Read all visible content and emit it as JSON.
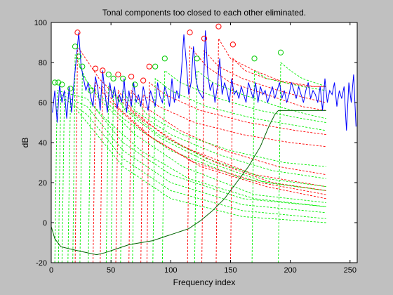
{
  "chart_data": {
    "type": "line",
    "title": "Tonal components too closed to each other eliminated.",
    "xlabel": "Frequency index",
    "ylabel": "dB",
    "xlim": [
      0,
      256
    ],
    "ylim": [
      -20,
      100
    ],
    "xticks": [
      0,
      50,
      100,
      150,
      200,
      250
    ],
    "yticks": [
      -20,
      0,
      20,
      40,
      60,
      80,
      100
    ],
    "grid": false,
    "colors": {
      "spectrum": "#0000ff",
      "threshold": "#006400",
      "tonal_masking": "#ff0000",
      "nontonal_masking": "#00ee00",
      "tonal_marker": "#ff0000",
      "nontonal_marker": "#00cc00"
    },
    "series": [
      {
        "key": "spectrum",
        "x": [
          1,
          3,
          5,
          7,
          9,
          11,
          13,
          15,
          17,
          19,
          21,
          23,
          25,
          27,
          29,
          31,
          33,
          35,
          37,
          39,
          41,
          43,
          45,
          47,
          49,
          51,
          53,
          55,
          57,
          59,
          61,
          63,
          65,
          67,
          69,
          71,
          73,
          75,
          77,
          79,
          81,
          83,
          85,
          87,
          89,
          91,
          93,
          95,
          97,
          99,
          101,
          103,
          105,
          107,
          109,
          111,
          113,
          115,
          117,
          119,
          121,
          123,
          125,
          127,
          129,
          131,
          133,
          135,
          137,
          139,
          141,
          143,
          145,
          147,
          149,
          151,
          153,
          155,
          157,
          159,
          161,
          163,
          165,
          167,
          169,
          171,
          173,
          175,
          177,
          179,
          181,
          183,
          185,
          187,
          189,
          191,
          193,
          195,
          197,
          199,
          201,
          203,
          205,
          207,
          209,
          211,
          213,
          215,
          217,
          219,
          221,
          223,
          225,
          227,
          229,
          231,
          233,
          235,
          237,
          239,
          241,
          243,
          245,
          247,
          249,
          251,
          253,
          255
        ],
        "y": [
          55,
          66,
          50,
          69,
          60,
          66,
          52,
          68,
          55,
          70,
          82,
          95,
          78,
          72,
          66,
          70,
          63,
          58,
          73,
          67,
          56,
          76,
          65,
          55,
          70,
          62,
          68,
          57,
          64,
          60,
          72,
          55,
          66,
          58,
          70,
          60,
          64,
          58,
          68,
          62,
          56,
          66,
          62,
          58,
          70,
          63,
          60,
          68,
          64,
          58,
          72,
          60,
          66,
          62,
          76,
          94,
          80,
          64,
          70,
          88,
          72,
          66,
          64,
          62,
          96,
          74,
          66,
          70,
          60,
          68,
          82,
          64,
          70,
          66,
          60,
          72,
          64,
          66,
          62,
          68,
          64,
          60,
          70,
          66,
          62,
          70,
          60,
          68,
          64,
          66,
          60,
          64,
          68,
          62,
          66,
          70,
          62,
          66,
          60,
          64,
          70,
          66,
          62,
          68,
          64,
          60,
          66,
          70,
          62,
          66,
          64,
          60,
          68,
          56,
          72,
          60,
          66,
          64,
          70,
          58,
          66,
          62,
          68,
          46,
          70,
          60,
          74,
          48
        ]
      },
      {
        "key": "threshold",
        "x": [
          0,
          3,
          8,
          15,
          22,
          30,
          38,
          45,
          55,
          65,
          75,
          85,
          95,
          105,
          115,
          125,
          135,
          145,
          155,
          165,
          175,
          182,
          187,
          190,
          200,
          210,
          220,
          230
        ],
        "y": [
          -2,
          -8,
          -12,
          -13,
          -14,
          -15,
          -16,
          -15,
          -13,
          -11,
          -10,
          -9,
          -7,
          -5,
          -3,
          1,
          6,
          12,
          20,
          28,
          38,
          48,
          54,
          56,
          56,
          56,
          56,
          56
        ]
      }
    ],
    "tonal_maskers": {
      "x": [
        22,
        37,
        43,
        56,
        67,
        77,
        82,
        116,
        128,
        140,
        152
      ],
      "y": [
        95,
        77,
        76,
        74,
        73,
        71,
        78,
        95,
        92,
        98,
        89
      ]
    },
    "nontonal_maskers": {
      "x": [
        3,
        6,
        9,
        16,
        20,
        23,
        26,
        33,
        48,
        52,
        60,
        70,
        87,
        95,
        122,
        170,
        192
      ],
      "y": [
        70,
        70,
        69,
        67,
        88,
        83,
        78,
        66,
        74,
        72,
        72,
        69,
        78,
        82,
        82,
        82,
        85
      ]
    },
    "masking_curves": [
      {
        "kind": "nontonal",
        "foot": [
          3,
          -20
        ],
        "peak": [
          5,
          66
        ],
        "tail": [
          [
            30,
            62
          ],
          [
            60,
            40
          ],
          [
            100,
            24
          ],
          [
            160,
            12
          ],
          [
            230,
            8
          ]
        ]
      },
      {
        "kind": "nontonal",
        "foot": [
          6,
          -20
        ],
        "peak": [
          8,
          64
        ],
        "tail": [
          [
            30,
            58
          ],
          [
            60,
            36
          ],
          [
            100,
            20
          ],
          [
            160,
            9
          ],
          [
            230,
            5
          ]
        ]
      },
      {
        "kind": "nontonal",
        "foot": [
          9,
          -20
        ],
        "peak": [
          11,
          62
        ],
        "tail": [
          [
            30,
            54
          ],
          [
            60,
            32
          ],
          [
            100,
            16
          ],
          [
            160,
            6
          ],
          [
            230,
            2
          ]
        ]
      },
      {
        "kind": "nontonal",
        "foot": [
          14,
          -20
        ],
        "peak": [
          16,
          60
        ],
        "tail": [
          [
            30,
            50
          ],
          [
            60,
            28
          ],
          [
            100,
            12
          ],
          [
            160,
            3
          ],
          [
            230,
            0
          ]
        ]
      },
      {
        "kind": "nontonal",
        "foot": [
          18,
          -20
        ],
        "peak": [
          20,
          84
        ],
        "tail": [
          [
            30,
            70
          ],
          [
            60,
            52
          ],
          [
            100,
            36
          ],
          [
            160,
            22
          ],
          [
            230,
            16
          ]
        ]
      },
      {
        "kind": "tonal",
        "foot": [
          20,
          -20
        ],
        "peak": [
          22,
          88
        ],
        "tail": [
          [
            40,
            72
          ],
          [
            70,
            54
          ],
          [
            110,
            38
          ],
          [
            170,
            24
          ],
          [
            230,
            18
          ]
        ]
      },
      {
        "kind": "nontonal",
        "foot": [
          24,
          -20
        ],
        "peak": [
          26,
          74
        ],
        "tail": [
          [
            40,
            62
          ],
          [
            70,
            44
          ],
          [
            110,
            28
          ],
          [
            170,
            14
          ],
          [
            230,
            10
          ]
        ]
      },
      {
        "kind": "nontonal",
        "foot": [
          31,
          -20
        ],
        "peak": [
          33,
          60
        ],
        "tail": [
          [
            45,
            52
          ],
          [
            75,
            36
          ],
          [
            115,
            22
          ],
          [
            170,
            12
          ],
          [
            230,
            8
          ]
        ]
      },
      {
        "kind": "tonal",
        "foot": [
          35,
          -20
        ],
        "peak": [
          37,
          70
        ],
        "tail": [
          [
            50,
            60
          ],
          [
            80,
            44
          ],
          [
            120,
            30
          ],
          [
            175,
            20
          ],
          [
            230,
            14
          ]
        ]
      },
      {
        "kind": "tonal",
        "foot": [
          41,
          -20
        ],
        "peak": [
          43,
          68
        ],
        "tail": [
          [
            55,
            58
          ],
          [
            85,
            42
          ],
          [
            125,
            28
          ],
          [
            180,
            18
          ],
          [
            230,
            12
          ]
        ]
      },
      {
        "kind": "nontonal",
        "foot": [
          46,
          -20
        ],
        "peak": [
          48,
          68
        ],
        "tail": [
          [
            60,
            58
          ],
          [
            90,
            44
          ],
          [
            130,
            32
          ],
          [
            180,
            22
          ],
          [
            230,
            18
          ]
        ]
      },
      {
        "kind": "nontonal",
        "foot": [
          50,
          -20
        ],
        "peak": [
          52,
          66
        ],
        "tail": [
          [
            62,
            56
          ],
          [
            92,
            42
          ],
          [
            132,
            30
          ],
          [
            180,
            20
          ],
          [
            230,
            16
          ]
        ]
      },
      {
        "kind": "tonal",
        "foot": [
          54,
          -20
        ],
        "peak": [
          56,
          66
        ],
        "tail": [
          [
            68,
            56
          ],
          [
            98,
            42
          ],
          [
            138,
            30
          ],
          [
            185,
            20
          ],
          [
            230,
            16
          ]
        ]
      },
      {
        "kind": "nontonal",
        "foot": [
          58,
          -20
        ],
        "peak": [
          60,
          66
        ],
        "tail": [
          [
            70,
            56
          ],
          [
            100,
            44
          ],
          [
            140,
            34
          ],
          [
            185,
            26
          ],
          [
            230,
            22
          ]
        ]
      },
      {
        "kind": "tonal",
        "foot": [
          65,
          -20
        ],
        "peak": [
          67,
          66
        ],
        "tail": [
          [
            78,
            58
          ],
          [
            108,
            46
          ],
          [
            145,
            36
          ],
          [
            190,
            28
          ],
          [
            230,
            24
          ]
        ]
      },
      {
        "kind": "nontonal",
        "foot": [
          68,
          -20
        ],
        "peak": [
          70,
          62
        ],
        "tail": [
          [
            80,
            54
          ],
          [
            110,
            44
          ],
          [
            150,
            36
          ],
          [
            195,
            30
          ],
          [
            230,
            28
          ]
        ]
      },
      {
        "kind": "tonal",
        "foot": [
          75,
          -20
        ],
        "peak": [
          77,
          64
        ],
        "tail": [
          [
            90,
            58
          ],
          [
            120,
            50
          ],
          [
            160,
            44
          ],
          [
            200,
            40
          ],
          [
            230,
            38
          ]
        ]
      },
      {
        "kind": "tonal",
        "foot": [
          80,
          -20
        ],
        "peak": [
          82,
          70
        ],
        "tail": [
          [
            95,
            64
          ],
          [
            125,
            56
          ],
          [
            165,
            50
          ],
          [
            205,
            46
          ],
          [
            230,
            44
          ]
        ]
      },
      {
        "kind": "nontonal",
        "foot": [
          85,
          -20
        ],
        "peak": [
          87,
          72
        ],
        "tail": [
          [
            100,
            66
          ],
          [
            130,
            58
          ],
          [
            170,
            52
          ],
          [
            210,
            48
          ],
          [
            230,
            46
          ]
        ]
      },
      {
        "kind": "nontonal",
        "foot": [
          93,
          -20
        ],
        "peak": [
          95,
          76
        ],
        "tail": [
          [
            108,
            70
          ],
          [
            140,
            62
          ],
          [
            175,
            56
          ],
          [
            210,
            52
          ],
          [
            230,
            50
          ]
        ]
      },
      {
        "kind": "tonal",
        "foot": [
          114,
          -20
        ],
        "peak": [
          116,
          88
        ],
        "tail": [
          [
            130,
            78
          ],
          [
            150,
            70
          ],
          [
            180,
            64
          ],
          [
            210,
            58
          ],
          [
            230,
            56
          ]
        ]
      },
      {
        "kind": "nontonal",
        "foot": [
          120,
          -20
        ],
        "peak": [
          122,
          76
        ],
        "tail": [
          [
            135,
            70
          ],
          [
            160,
            64
          ],
          [
            190,
            58
          ],
          [
            215,
            54
          ],
          [
            230,
            52
          ]
        ]
      },
      {
        "kind": "tonal",
        "foot": [
          126,
          -20
        ],
        "peak": [
          128,
          86
        ],
        "tail": [
          [
            140,
            78
          ],
          [
            160,
            72
          ],
          [
            190,
            66
          ],
          [
            215,
            62
          ],
          [
            230,
            60
          ]
        ]
      },
      {
        "kind": "tonal",
        "foot": [
          138,
          -20
        ],
        "peak": [
          140,
          92
        ],
        "tail": [
          [
            150,
            82
          ],
          [
            170,
            76
          ],
          [
            195,
            70
          ],
          [
            215,
            68
          ],
          [
            230,
            68
          ]
        ]
      },
      {
        "kind": "tonal",
        "foot": [
          150,
          -20
        ],
        "peak": [
          152,
          82
        ],
        "tail": [
          [
            162,
            76
          ],
          [
            180,
            72
          ],
          [
            200,
            70
          ],
          [
            220,
            68
          ],
          [
            230,
            68
          ]
        ]
      },
      {
        "kind": "nontonal",
        "foot": [
          168,
          -20
        ],
        "peak": [
          170,
          76
        ],
        "tail": [
          [
            180,
            72
          ],
          [
            195,
            70
          ],
          [
            210,
            68
          ],
          [
            230,
            66
          ]
        ]
      },
      {
        "kind": "nontonal",
        "foot": [
          190,
          -20
        ],
        "peak": [
          192,
          80
        ],
        "tail": [
          [
            200,
            76
          ],
          [
            210,
            72
          ],
          [
            220,
            70
          ],
          [
            230,
            68
          ]
        ]
      }
    ]
  }
}
